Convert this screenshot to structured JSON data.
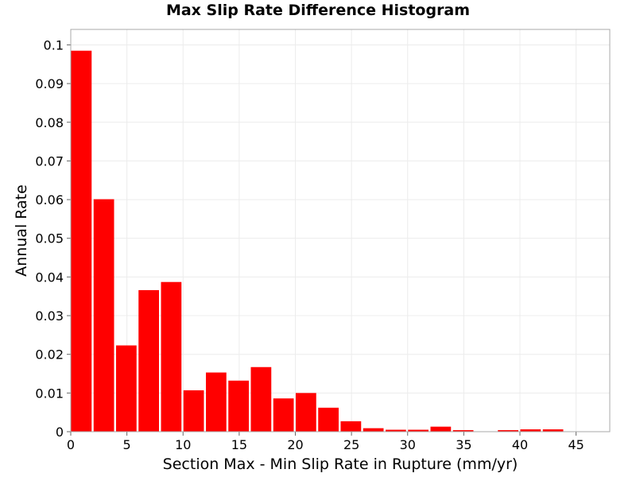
{
  "chart_data": {
    "type": "bar",
    "title": "Max Slip Rate Difference Histogram",
    "xlabel": "Section Max - Min Slip Rate in Rupture (mm/yr)",
    "ylabel": "Annual Rate",
    "xlim": [
      0,
      48
    ],
    "ylim": [
      0,
      0.104
    ],
    "bin_width": 2,
    "x_ticks": [
      0,
      5,
      10,
      15,
      20,
      25,
      30,
      35,
      40,
      45
    ],
    "x_tick_labels": [
      "0",
      "5",
      "10",
      "15",
      "20",
      "25",
      "30",
      "35",
      "40",
      "45"
    ],
    "y_ticks": [
      0,
      0.01,
      0.02,
      0.03,
      0.04,
      0.05,
      0.06,
      0.07,
      0.08,
      0.09,
      0.1
    ],
    "y_tick_labels": [
      "0",
      "0.01",
      "0.02",
      "0.03",
      "0.04",
      "0.05",
      "0.06",
      "0.07",
      "0.08",
      "0.09",
      "0.1"
    ],
    "grid": true,
    "bar_color": "#ff0000",
    "bins": [
      {
        "x0": 0,
        "x1": 2,
        "value": 0.0985
      },
      {
        "x0": 2,
        "x1": 4,
        "value": 0.0601
      },
      {
        "x0": 4,
        "x1": 6,
        "value": 0.0223
      },
      {
        "x0": 6,
        "x1": 8,
        "value": 0.0366
      },
      {
        "x0": 8,
        "x1": 10,
        "value": 0.0387
      },
      {
        "x0": 10,
        "x1": 12,
        "value": 0.0107
      },
      {
        "x0": 12,
        "x1": 14,
        "value": 0.0153
      },
      {
        "x0": 14,
        "x1": 16,
        "value": 0.0132
      },
      {
        "x0": 16,
        "x1": 18,
        "value": 0.0167
      },
      {
        "x0": 18,
        "x1": 20,
        "value": 0.0086
      },
      {
        "x0": 20,
        "x1": 22,
        "value": 0.01
      },
      {
        "x0": 22,
        "x1": 24,
        "value": 0.0062
      },
      {
        "x0": 24,
        "x1": 26,
        "value": 0.0027
      },
      {
        "x0": 26,
        "x1": 28,
        "value": 0.0009
      },
      {
        "x0": 28,
        "x1": 30,
        "value": 0.0005
      },
      {
        "x0": 30,
        "x1": 32,
        "value": 0.0005
      },
      {
        "x0": 32,
        "x1": 34,
        "value": 0.0013
      },
      {
        "x0": 34,
        "x1": 36,
        "value": 0.0004
      },
      {
        "x0": 36,
        "x1": 38,
        "value": 0.0001
      },
      {
        "x0": 38,
        "x1": 40,
        "value": 0.0004
      },
      {
        "x0": 40,
        "x1": 42,
        "value": 0.0006
      },
      {
        "x0": 42,
        "x1": 44,
        "value": 0.0006
      },
      {
        "x0": 44,
        "x1": 46,
        "value": 0.0001
      },
      {
        "x0": 46,
        "x1": 48,
        "value": 0.0001
      }
    ]
  }
}
